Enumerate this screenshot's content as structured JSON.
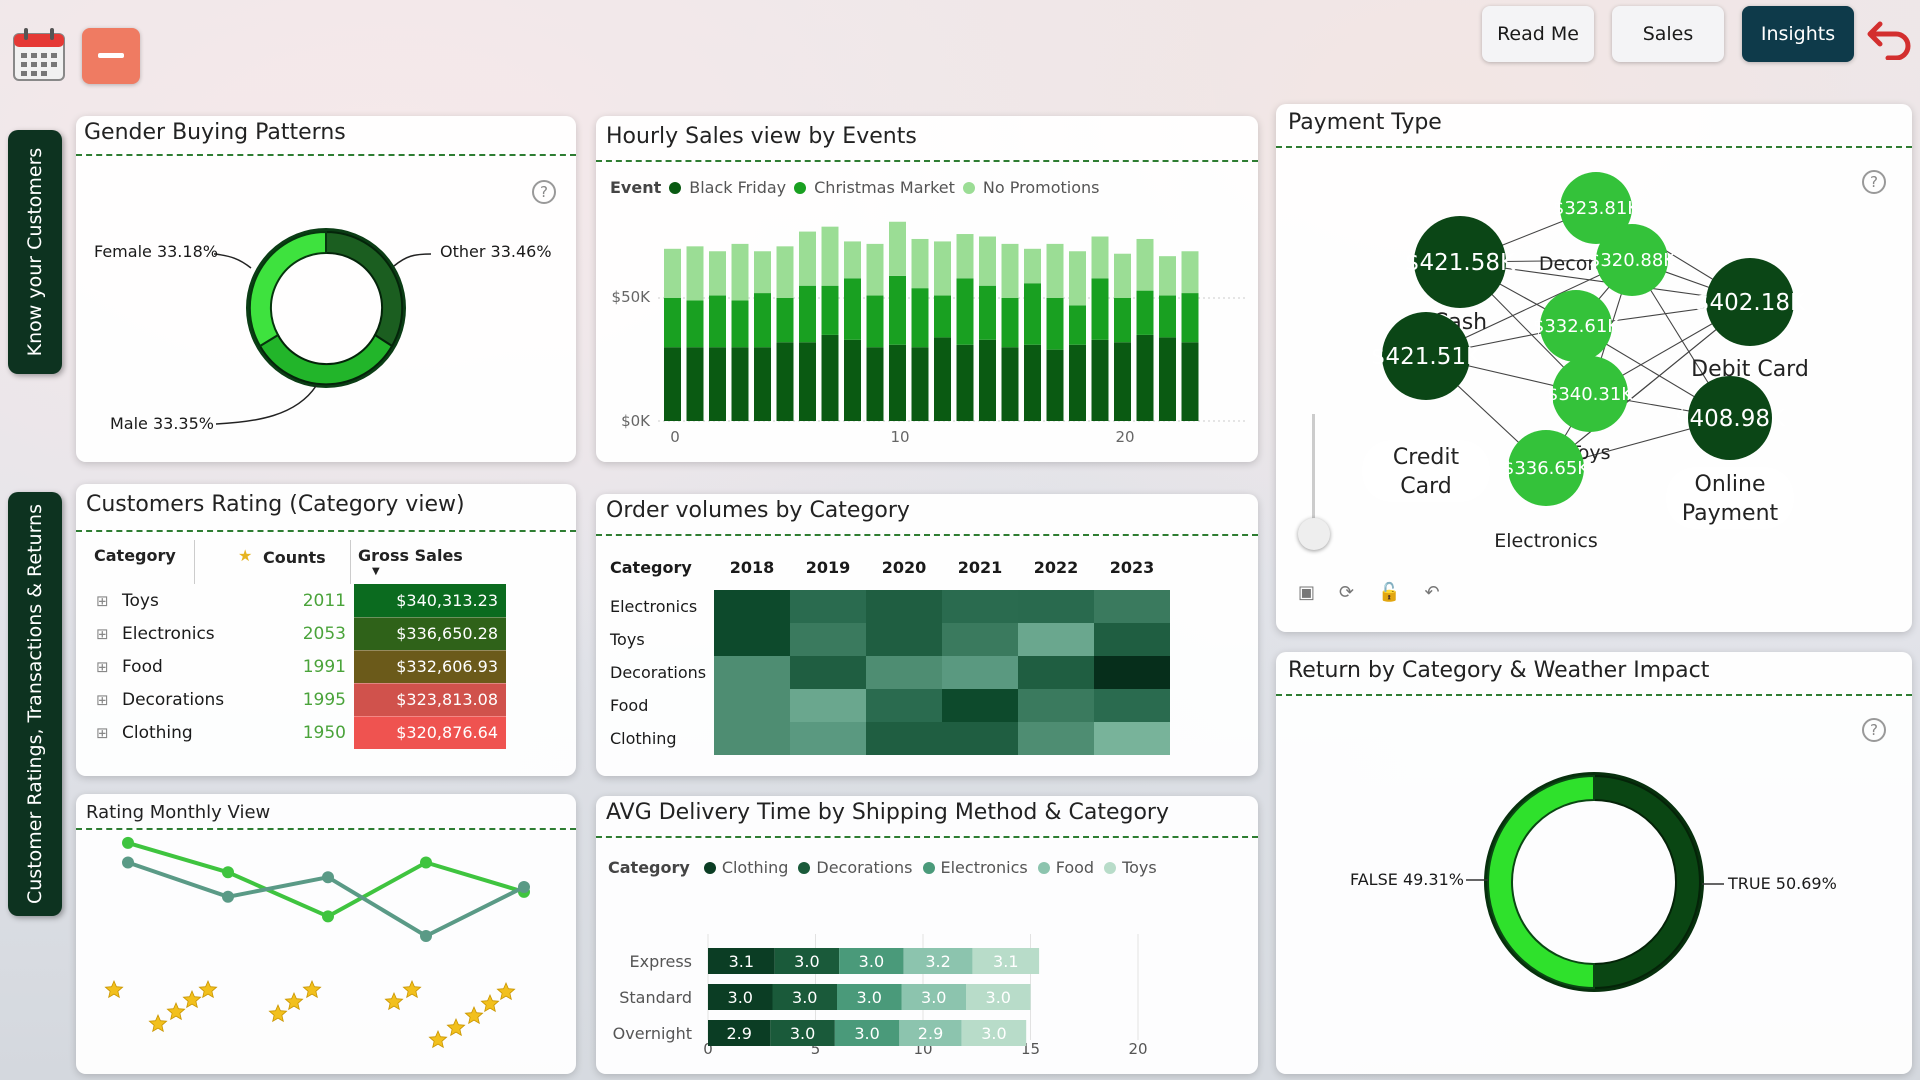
{
  "nav": {
    "read_me": "Read Me",
    "sales": "Sales",
    "insights": "Insights"
  },
  "side_tabs": {
    "customers": "Know your Customers",
    "ratings": "Customer Ratings, Transactions & Returns"
  },
  "gender": {
    "title": "Gender Buying Patterns",
    "chart_data": {
      "type": "pie",
      "labels": [
        "Female",
        "Other",
        "Male"
      ],
      "values": [
        33.18,
        33.46,
        33.35
      ]
    },
    "labels": {
      "female": "Female 33.18%",
      "other": "Other 33.46%",
      "male": "Male 33.35%"
    }
  },
  "hourly": {
    "title": "Hourly Sales view by Events",
    "legend_title": "Event",
    "legend": [
      "Black Friday",
      "Christmas Market",
      "No Promotions"
    ],
    "y_ticks": [
      "$50K",
      "$0K"
    ],
    "x_ticks": [
      "0",
      "10",
      "20"
    ],
    "chart_data": {
      "type": "bar",
      "stacked": true,
      "x": [
        0,
        1,
        2,
        3,
        4,
        5,
        6,
        7,
        8,
        9,
        10,
        11,
        12,
        13,
        14,
        15,
        16,
        17,
        18,
        19,
        20,
        21,
        22,
        23
      ],
      "series": [
        {
          "name": "Black Friday",
          "values": [
            30,
            30,
            30,
            30,
            30,
            32,
            32,
            35,
            33,
            30,
            31,
            30,
            34,
            31,
            33,
            30,
            31,
            29,
            31,
            33,
            32,
            35,
            34,
            32
          ]
        },
        {
          "name": "Christmas Market",
          "values": [
            20,
            19,
            21,
            19,
            22,
            18,
            23,
            20,
            25,
            21,
            28,
            24,
            17,
            27,
            22,
            20,
            25,
            21,
            16,
            25,
            18,
            18,
            17,
            20
          ]
        },
        {
          "name": "No Promotions",
          "values": [
            20,
            22,
            18,
            23,
            17,
            21,
            22,
            24,
            15,
            21,
            22,
            20,
            22,
            18,
            20,
            22,
            14,
            22,
            22,
            17,
            18,
            21,
            16,
            17
          ]
        }
      ],
      "ylim": [
        0,
        90
      ]
    }
  },
  "payment": {
    "title": "Payment Type",
    "chart_data": {
      "type": "network",
      "nodes": [
        {
          "label": "Decorations",
          "value": "$323.81K"
        },
        {
          "label": "Cash",
          "value": "$421.58K"
        },
        {
          "label": "",
          "value": "$320.88K"
        },
        {
          "label": "Debit Card",
          "value": "$402.18K"
        },
        {
          "label": "Food",
          "value": "$332.61K"
        },
        {
          "label": "Credit Card",
          "value": "$421.51K"
        },
        {
          "label": "Toys",
          "value": "$340.31K"
        },
        {
          "label": "Online Payment",
          "value": "$408.98K"
        },
        {
          "label": "Electronics",
          "value": "$336.65K"
        }
      ]
    },
    "tool_icons": [
      "screenshot-icon",
      "refresh-icon",
      "unlock-icon",
      "undo-icon"
    ]
  },
  "rating": {
    "title": "Customers Rating (Category view)",
    "columns": [
      "Category",
      "Counts",
      "Gross Sales"
    ],
    "rows": [
      {
        "category": "Toys",
        "count": "2011",
        "sales": "$340,313.23",
        "color": "#0b6b1f"
      },
      {
        "category": "Electronics",
        "count": "2053",
        "sales": "$336,650.28",
        "color": "#2f6219"
      },
      {
        "category": "Food",
        "count": "1991",
        "sales": "$332,606.93",
        "color": "#6b5a1a"
      },
      {
        "category": "Decorations",
        "count": "1995",
        "sales": "$323,813.08",
        "color": "#d0524c"
      },
      {
        "category": "Clothing",
        "count": "1950",
        "sales": "$320,876.64",
        "color": "#ef5350"
      }
    ]
  },
  "orders": {
    "title": "Order volumes by Category",
    "header": "Category",
    "years": [
      "2018",
      "2019",
      "2020",
      "2021",
      "2022",
      "2023"
    ],
    "rows": [
      "Electronics",
      "Toys",
      "Decorations",
      "Food",
      "Clothing"
    ],
    "colors": [
      [
        "#0d4a2c",
        "#2a6b4f",
        "#1f5e41",
        "#2a6b4f",
        "#296a4e",
        "#3a7a5e"
      ],
      [
        "#0d4a2c",
        "#3a7a5e",
        "#1f5e41",
        "#3a7a5e",
        "#6aa78e",
        "#1f5e41"
      ],
      [
        "#4e8d72",
        "#1f5e41",
        "#4e8d72",
        "#5a9980",
        "#1f5e41",
        "#062e1b"
      ],
      [
        "#4e8d72",
        "#6aa78e",
        "#2a6b4f",
        "#0d4a2c",
        "#3a7a5e",
        "#2a6b4f"
      ],
      [
        "#4e8d72",
        "#5a9980",
        "#1f5e41",
        "#1f5e41",
        "#4e8d72",
        "#78b39a"
      ]
    ]
  },
  "delivery": {
    "title": "AVG Delivery Time by Shipping Method & Category",
    "legend_title": "Category",
    "legend": [
      "Clothing",
      "Decorations",
      "Electronics",
      "Food",
      "Toys"
    ],
    "legend_colors": [
      "#0b3d24",
      "#1a5a3a",
      "#4a9a7a",
      "#8cc4ae",
      "#b8dcc9"
    ],
    "x_ticks": [
      "0",
      "5",
      "10",
      "15",
      "20"
    ],
    "chart_data": {
      "type": "bar",
      "orientation": "horizontal",
      "stacked": true,
      "categories": [
        "Express",
        "Standard",
        "Overnight"
      ],
      "series": [
        {
          "name": "Clothing",
          "values": [
            3.1,
            3.0,
            2.9
          ]
        },
        {
          "name": "Decorations",
          "values": [
            3.0,
            3.0,
            3.0
          ]
        },
        {
          "name": "Electronics",
          "values": [
            3.0,
            3.0,
            3.0
          ]
        },
        {
          "name": "Food",
          "values": [
            3.2,
            3.0,
            2.9
          ]
        },
        {
          "name": "Toys",
          "values": [
            3.1,
            3.0,
            3.0
          ]
        }
      ],
      "xlim": [
        0,
        20
      ]
    }
  },
  "monthly": {
    "title": "Rating Monthly View",
    "chart_data": {
      "type": "line",
      "series": [
        {
          "values": [
            4.9,
            4.3,
            3.4,
            4.5,
            3.9
          ]
        },
        {
          "values": [
            4.5,
            3.8,
            4.2,
            3.0,
            4.0
          ]
        }
      ]
    }
  },
  "returns": {
    "title": "Return by Category & Weather Impact",
    "chart_data": {
      "type": "pie",
      "labels": [
        "FALSE",
        "TRUE"
      ],
      "values": [
        49.31,
        50.69
      ]
    },
    "labels": {
      "false": "FALSE 49.31%",
      "true": "TRUE 50.69%"
    }
  }
}
